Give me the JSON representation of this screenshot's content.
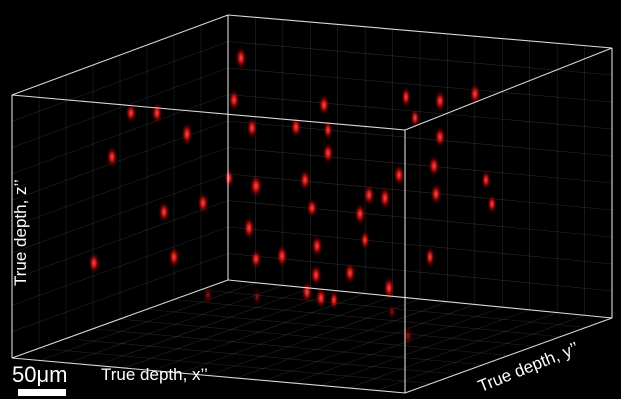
{
  "image": {
    "background": "#000000",
    "box_color": "#ffffff",
    "spot_color": "#ff2020"
  },
  "axes": {
    "x_label": "True depth, x’’",
    "y_label": "True depth, y’’",
    "z_label": "True depth, z’’"
  },
  "scale_bar": {
    "text": "50μm",
    "length_um": 50
  }
}
